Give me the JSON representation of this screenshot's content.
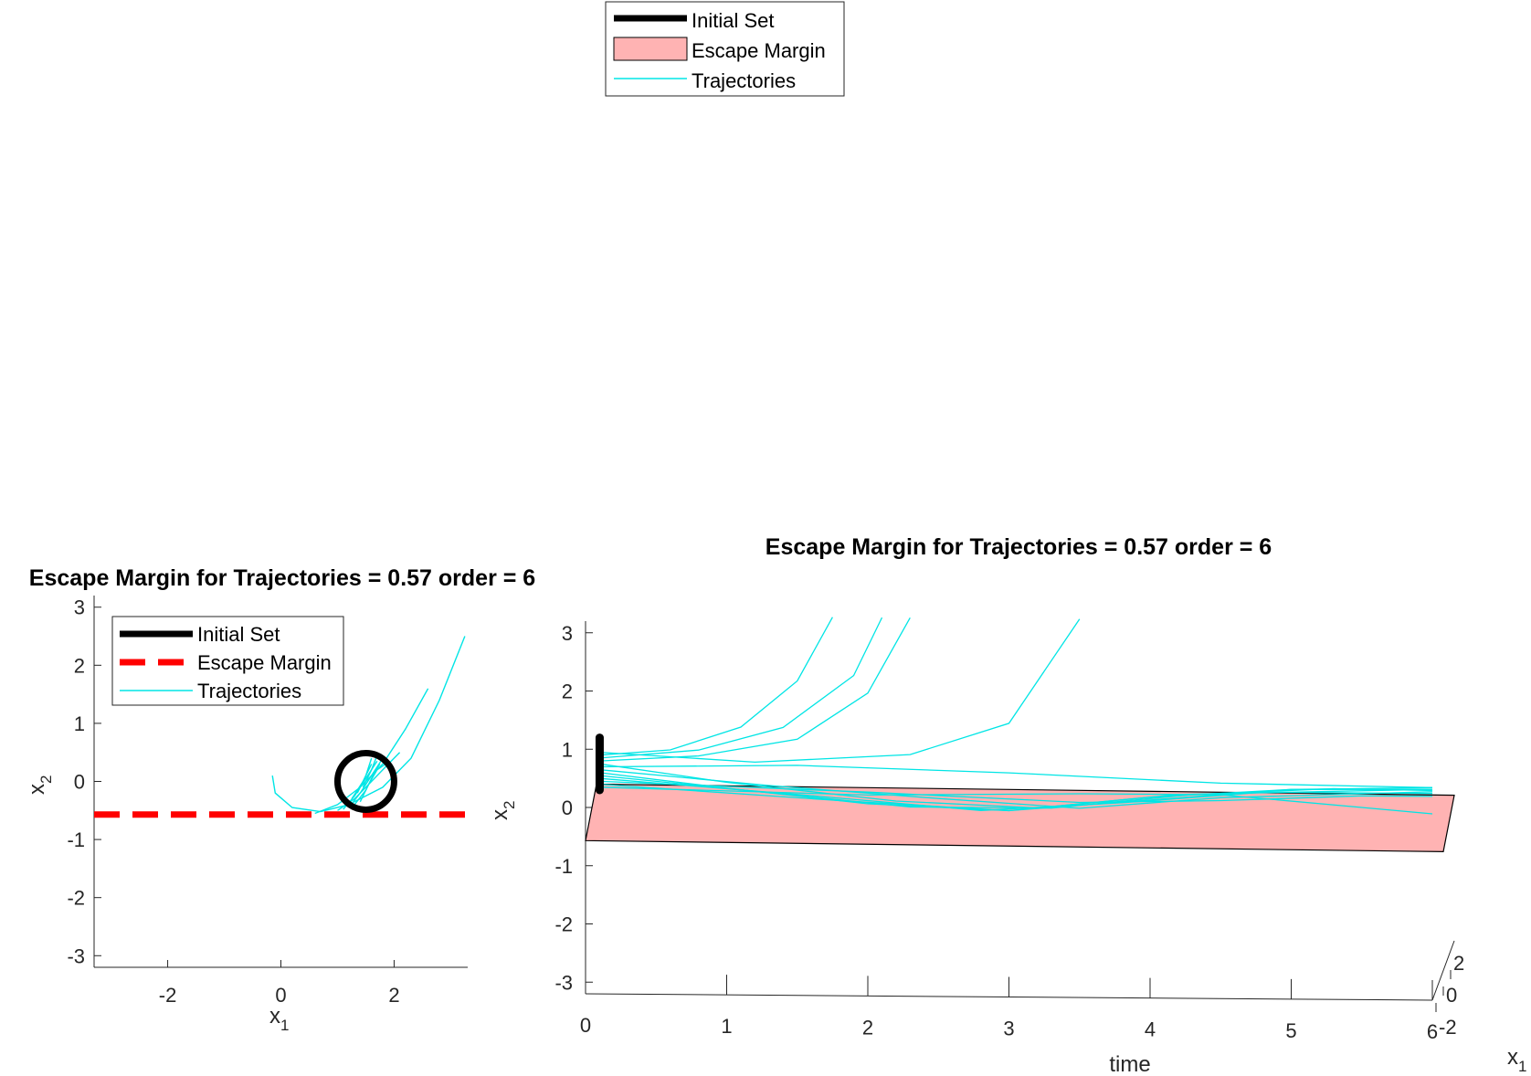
{
  "colors": {
    "trajectory": "#00e5e5",
    "initial_set": "#000000",
    "escape_margin_line": "#ff0000",
    "escape_margin_fill": "#ffb3b3",
    "axis": "#262626"
  },
  "top_legend": {
    "entries": [
      {
        "label": "Initial Set",
        "style": "thick-black-line"
      },
      {
        "label": "Escape Margin",
        "style": "pink-patch"
      },
      {
        "label": "Trajectories",
        "style": "thin-cyan-line"
      }
    ]
  },
  "chart_data": [
    {
      "type": "line",
      "title": "Escape Margin for Trajectories = 0.57 order = 6",
      "xlabel": "x1",
      "ylabel": "x2",
      "xlim": [
        -3.3,
        3.3
      ],
      "ylim": [
        -3.2,
        3.2
      ],
      "xticks": [
        -2,
        0,
        2
      ],
      "yticks": [
        3,
        2,
        1,
        0,
        -1,
        -2,
        -3
      ],
      "legend": {
        "placement": "top-left",
        "entries": [
          {
            "label": "Initial Set",
            "style": "thick-black-line"
          },
          {
            "label": "Escape Margin",
            "style": "dashed-red-line"
          },
          {
            "label": "Trajectories",
            "style": "thin-cyan-line"
          }
        ]
      },
      "initial_set": {
        "shape": "circle",
        "center": [
          1.5,
          0.0
        ],
        "radius": 0.5
      },
      "escape_margin": {
        "x2": -0.57
      },
      "trajectories": [
        [
          [
            -0.15,
            0.1
          ],
          [
            -0.1,
            -0.2
          ],
          [
            0.2,
            -0.45
          ],
          [
            0.7,
            -0.52
          ],
          [
            1.2,
            -0.4
          ],
          [
            1.8,
            -0.1
          ],
          [
            2.3,
            0.4
          ],
          [
            2.8,
            1.4
          ],
          [
            3.25,
            2.5
          ]
        ],
        [
          [
            0.6,
            -0.55
          ],
          [
            1.0,
            -0.4
          ],
          [
            1.4,
            -0.1
          ],
          [
            1.8,
            0.3
          ],
          [
            2.2,
            0.9
          ],
          [
            2.6,
            1.6
          ]
        ],
        [
          [
            1.0,
            -0.5
          ],
          [
            1.3,
            -0.3
          ],
          [
            1.6,
            0.0
          ],
          [
            1.9,
            0.3
          ],
          [
            2.1,
            0.5
          ]
        ],
        [
          [
            1.2,
            -0.45
          ],
          [
            1.4,
            -0.2
          ],
          [
            1.6,
            0.1
          ],
          [
            1.8,
            0.4
          ]
        ],
        [
          [
            1.3,
            -0.4
          ],
          [
            1.5,
            -0.15
          ],
          [
            1.65,
            0.15
          ],
          [
            1.75,
            0.3
          ]
        ],
        [
          [
            1.1,
            -0.48
          ],
          [
            1.3,
            -0.25
          ],
          [
            1.5,
            0.05
          ],
          [
            1.7,
            0.35
          ]
        ],
        [
          [
            1.4,
            -0.35
          ],
          [
            1.55,
            -0.05
          ],
          [
            1.7,
            0.2
          ],
          [
            1.85,
            0.3
          ]
        ],
        [
          [
            1.25,
            -0.3
          ],
          [
            1.45,
            0.0
          ],
          [
            1.6,
            0.3
          ]
        ],
        [
          [
            1.35,
            -0.2
          ],
          [
            1.5,
            0.1
          ],
          [
            1.6,
            0.4
          ]
        ],
        [
          [
            1.45,
            -0.1
          ],
          [
            1.6,
            0.2
          ],
          [
            1.7,
            0.45
          ]
        ]
      ]
    },
    {
      "type": "line",
      "title": "Escape Margin for Trajectories = 0.57 order = 6",
      "xlabel": "time",
      "ylabel": "x2",
      "zlabel": "x1",
      "xlim": [
        0,
        6
      ],
      "ylim": [
        -3.2,
        3.2
      ],
      "xticks": [
        0,
        1,
        2,
        3,
        4,
        5,
        6
      ],
      "yticks": [
        3,
        2,
        1,
        0,
        -1,
        -2,
        -3
      ],
      "depth_ticks": [
        "2",
        "0",
        "-2"
      ],
      "initial_set": {
        "time": 0.1,
        "x2_range": [
          0.3,
          1.2
        ]
      },
      "escape_margin": {
        "x2": -0.57,
        "time_range": [
          0,
          6
        ]
      },
      "trajectories": [
        [
          [
            0.1,
            0.9
          ],
          [
            0.6,
            1.0
          ],
          [
            1.1,
            1.4
          ],
          [
            1.5,
            2.2
          ],
          [
            1.75,
            3.3
          ]
        ],
        [
          [
            0.1,
            0.85
          ],
          [
            0.8,
            1.0
          ],
          [
            1.4,
            1.4
          ],
          [
            1.9,
            2.3
          ],
          [
            2.1,
            3.3
          ]
        ],
        [
          [
            0.1,
            0.8
          ],
          [
            0.8,
            0.9
          ],
          [
            1.5,
            1.2
          ],
          [
            2.0,
            2.0
          ],
          [
            2.3,
            3.3
          ]
        ],
        [
          [
            0.1,
            0.95
          ],
          [
            1.2,
            0.8
          ],
          [
            2.3,
            0.95
          ],
          [
            3.0,
            1.5
          ],
          [
            3.5,
            3.3
          ]
        ],
        [
          [
            0.1,
            0.7
          ],
          [
            1.5,
            0.75
          ],
          [
            3.0,
            0.65
          ],
          [
            4.5,
            0.5
          ],
          [
            6.0,
            0.45
          ]
        ],
        [
          [
            0.1,
            0.6
          ],
          [
            1.0,
            0.35
          ],
          [
            2.0,
            0.1
          ],
          [
            3.0,
            0.0
          ],
          [
            4.0,
            0.2
          ],
          [
            5.0,
            0.4
          ],
          [
            6.0,
            0.45
          ]
        ],
        [
          [
            0.1,
            0.55
          ],
          [
            1.2,
            0.3
          ],
          [
            2.3,
            0.05
          ],
          [
            3.3,
            0.05
          ],
          [
            4.3,
            0.3
          ],
          [
            5.3,
            0.42
          ],
          [
            6.0,
            0.4
          ]
        ],
        [
          [
            0.1,
            0.5
          ],
          [
            1.5,
            0.25
          ],
          [
            2.8,
            0.0
          ],
          [
            3.8,
            0.15
          ],
          [
            4.8,
            0.35
          ],
          [
            6.0,
            0.35
          ]
        ],
        [
          [
            0.1,
            0.65
          ],
          [
            1.3,
            0.4
          ],
          [
            2.5,
            0.2
          ],
          [
            3.5,
            0.05
          ],
          [
            4.5,
            0.25
          ],
          [
            6.0,
            0.38
          ]
        ],
        [
          [
            0.1,
            0.45
          ],
          [
            2.0,
            0.3
          ],
          [
            3.5,
            0.15
          ],
          [
            4.5,
            0.2
          ],
          [
            5.5,
            0.3
          ],
          [
            6.0,
            0.3
          ]
        ],
        [
          [
            0.1,
            0.35
          ],
          [
            2.0,
            0.25
          ],
          [
            3.5,
            0.3
          ],
          [
            4.5,
            0.3
          ],
          [
            5.5,
            0.1
          ],
          [
            6.0,
            0.0
          ]
        ],
        [
          [
            0.1,
            0.75
          ],
          [
            1.0,
            0.45
          ],
          [
            2.2,
            0.15
          ],
          [
            3.2,
            0.05
          ],
          [
            4.2,
            0.3
          ],
          [
            6.0,
            0.42
          ]
        ],
        [
          [
            0.1,
            0.4
          ],
          [
            1.8,
            0.15
          ],
          [
            3.0,
            0.0
          ],
          [
            4.0,
            0.25
          ],
          [
            5.0,
            0.4
          ],
          [
            6.0,
            0.42
          ]
        ]
      ]
    }
  ]
}
